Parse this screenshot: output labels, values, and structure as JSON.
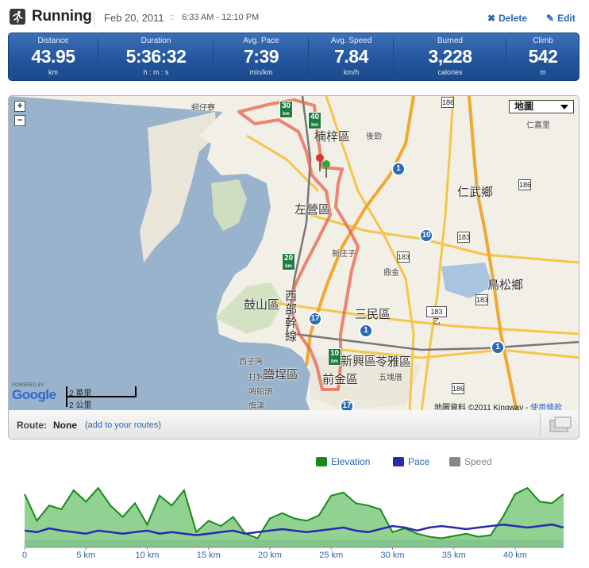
{
  "header": {
    "title": "Running",
    "date": "Feb 20, 2011",
    "date_sep": "::",
    "time_range": "6:33 AM - 12:10 PM",
    "delete_label": "Delete",
    "edit_label": "Edit"
  },
  "stats": [
    {
      "label": "Distance",
      "value": "43.95",
      "unit": "km"
    },
    {
      "label": "Duration",
      "value": "5:36:32",
      "unit": "h : m : s"
    },
    {
      "label": "Avg. Pace",
      "value": "7:39",
      "unit": "min/km"
    },
    {
      "label": "Avg. Speed",
      "value": "7.84",
      "unit": "km/h"
    },
    {
      "label": "Burned",
      "value": "3,228",
      "unit": "calories"
    },
    {
      "label": "Climb",
      "value": "542",
      "unit": "m"
    }
  ],
  "map": {
    "zoom_in": "+",
    "zoom_out": "−",
    "map_type": "地圖",
    "places": {
      "zuoying": "左營區",
      "nanzi": "楠梓區",
      "renwu": "仁武鄉",
      "niaosong": "鳥松鄉",
      "gushan": "鼓山區",
      "sanmin": "三民區",
      "lingya": "苓雅區",
      "yancheng": "鹽埕區",
      "qianjin": "前金區",
      "xinxing": "新興區",
      "xibu": "西部幹線"
    },
    "small_places": {
      "kezailiao": "蚵仔寮",
      "houjing": "後勁",
      "renhe": "仁嘉里",
      "xinzhuangzi": "新庄子",
      "dingding": "鼎金",
      "ziziwan": "西子灣",
      "dagou": "打狗",
      "shaochuantou": "哨船頭",
      "qijin": "旗津",
      "wukuai": "五塊厝"
    },
    "km_markers": [
      "30",
      "40",
      "20",
      "10"
    ],
    "km_unit": "km",
    "shields": [
      "186",
      "183",
      "183",
      "183乙",
      "186",
      "183",
      "186"
    ],
    "freeway_shields": [
      "1",
      "10",
      "17",
      "17",
      "1",
      "1"
    ],
    "powered_by": "POWERED BY",
    "google": "Google",
    "scale_imperial": "2 英里",
    "scale_metric": "2 公里",
    "attribution": "地圖資料 ©2011 Kingway - ",
    "terms": "使用條款"
  },
  "route": {
    "label": "Route:",
    "value": "None",
    "link_prefix": "(",
    "link_text": "add to your routes",
    "link_suffix": ")"
  },
  "legend": {
    "elevation": "Elevation",
    "pace": "Pace",
    "speed": "Speed"
  },
  "colors": {
    "elevation": "#1a8a1a",
    "pace": "#2a2ab0",
    "speed": "#888888",
    "route": "#e8604a"
  },
  "chart_data": {
    "type": "area",
    "x": [
      0,
      1,
      2,
      3,
      4,
      5,
      6,
      7,
      8,
      9,
      10,
      11,
      12,
      13,
      14,
      15,
      16,
      17,
      18,
      19,
      20,
      21,
      22,
      23,
      24,
      25,
      26,
      27,
      28,
      29,
      30,
      31,
      32,
      33,
      34,
      35,
      36,
      37,
      38,
      39,
      40,
      41,
      42,
      43,
      43.95
    ],
    "x_tick_labels": [
      "0",
      "5 km",
      "10 km",
      "15 km",
      "20 km",
      "25 km",
      "30 km",
      "35 km",
      "40 km"
    ],
    "x_ticks": [
      0,
      5,
      10,
      15,
      20,
      25,
      30,
      35,
      40
    ],
    "xlim": [
      0,
      43.95
    ],
    "series": [
      {
        "name": "Elevation",
        "values": [
          70,
          35,
          55,
          50,
          75,
          60,
          78,
          55,
          40,
          58,
          30,
          68,
          55,
          75,
          20,
          35,
          28,
          40,
          18,
          12,
          38,
          45,
          38,
          35,
          42,
          68,
          72,
          58,
          55,
          50,
          20,
          25,
          18,
          14,
          12,
          15,
          18,
          14,
          16,
          40,
          70,
          78,
          60,
          58,
          70
        ]
      },
      {
        "name": "Pace",
        "values": [
          22,
          20,
          25,
          22,
          20,
          18,
          22,
          20,
          18,
          20,
          22,
          18,
          20,
          18,
          16,
          18,
          20,
          22,
          18,
          20,
          22,
          24,
          22,
          20,
          22,
          24,
          26,
          22,
          20,
          24,
          28,
          26,
          22,
          26,
          28,
          26,
          24,
          26,
          28,
          30,
          28,
          26,
          28,
          30,
          26
        ]
      },
      {
        "name": "Speed",
        "values": [
          10,
          10,
          10,
          10,
          10,
          10,
          10,
          10,
          10,
          10,
          10,
          10,
          10,
          10,
          10,
          10,
          10,
          10,
          10,
          10,
          10,
          10,
          10,
          10,
          10,
          10,
          10,
          10,
          10,
          10,
          10,
          10,
          10,
          10,
          10,
          10,
          10,
          10,
          10,
          10,
          10,
          10,
          10,
          10,
          10
        ]
      }
    ]
  }
}
